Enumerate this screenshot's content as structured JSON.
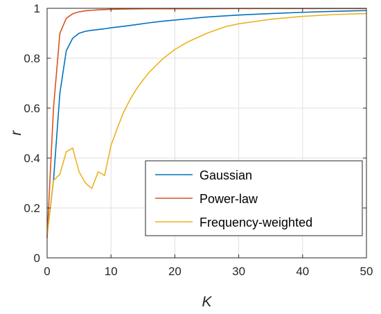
{
  "chart_data": {
    "type": "line",
    "title": "",
    "xlabel": "K",
    "ylabel": "r",
    "xlim": [
      0,
      50
    ],
    "ylim": [
      0,
      1
    ],
    "xticks": [
      0,
      10,
      20,
      30,
      40,
      50
    ],
    "yticks": [
      0,
      0.2,
      0.4,
      0.6,
      0.8,
      1
    ],
    "xtick_labels": [
      "0",
      "10",
      "20",
      "30",
      "40",
      "50"
    ],
    "ytick_labels": [
      "0",
      "0.2",
      "0.4",
      "0.6",
      "0.8",
      "1"
    ],
    "grid": true,
    "legend_position": "bottom-right",
    "series": [
      {
        "name": "Gaussian",
        "color": "#0072BD",
        "x": [
          0,
          1,
          2,
          3,
          4,
          5,
          6,
          7,
          8,
          9,
          10,
          12,
          14,
          16,
          18,
          20,
          22,
          25,
          28,
          30,
          35,
          40,
          45,
          50
        ],
        "y": [
          0.09,
          0.31,
          0.66,
          0.83,
          0.88,
          0.9,
          0.908,
          0.912,
          0.915,
          0.918,
          0.922,
          0.928,
          0.935,
          0.942,
          0.948,
          0.953,
          0.958,
          0.965,
          0.97,
          0.973,
          0.979,
          0.984,
          0.988,
          0.991
        ]
      },
      {
        "name": "Power-law",
        "color": "#D95319",
        "x": [
          0,
          1,
          2,
          3,
          4,
          5,
          6,
          7,
          8,
          9,
          10,
          12,
          15,
          20,
          30,
          40,
          50
        ],
        "y": [
          0.08,
          0.6,
          0.9,
          0.96,
          0.978,
          0.986,
          0.99,
          0.992,
          0.994,
          0.995,
          0.996,
          0.997,
          0.998,
          0.998,
          0.999,
          0.999,
          0.999
        ]
      },
      {
        "name": "Frequency-weighted",
        "color": "#EDB120",
        "x": [
          0,
          1,
          2,
          3,
          4,
          5,
          6,
          7,
          8,
          9,
          10,
          11,
          12,
          13,
          14,
          15,
          16,
          18,
          20,
          22,
          25,
          28,
          30,
          35,
          40,
          45,
          50
        ],
        "y": [
          0.09,
          0.31,
          0.335,
          0.425,
          0.44,
          0.345,
          0.3,
          0.278,
          0.345,
          0.33,
          0.45,
          0.52,
          0.585,
          0.635,
          0.677,
          0.712,
          0.744,
          0.795,
          0.835,
          0.865,
          0.9,
          0.927,
          0.938,
          0.956,
          0.968,
          0.975,
          0.979
        ]
      }
    ]
  }
}
